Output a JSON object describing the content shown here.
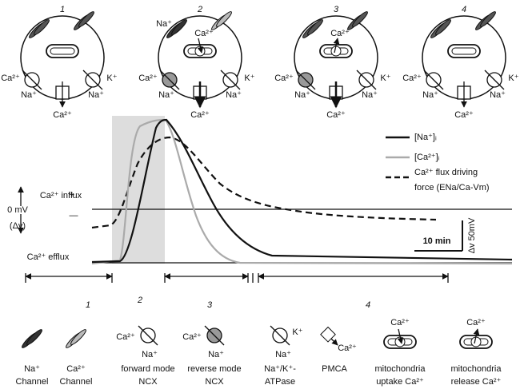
{
  "cells": [
    {
      "number": "1",
      "ncx_ca": "Ca²⁺",
      "ncx_na": "Na⁺",
      "atpase_k": "K⁺",
      "atpase_na": "Na⁺",
      "pmca": "Ca²⁺"
    },
    {
      "number": "2",
      "channel_na": "Na⁺",
      "mito": "Ca²⁺",
      "ncx_ca": "Ca²⁺",
      "ncx_na": "Na⁺",
      "atpase_k": "K⁺",
      "atpase_na": "Na⁺",
      "pmca": "Ca²⁺"
    },
    {
      "number": "3",
      "mito": "Ca²⁺",
      "ncx_ca": "Ca²⁺",
      "ncx_na": "Na⁺",
      "atpase_k": "K⁺",
      "atpase_na": "Na⁺",
      "pmca": "Ca²⁺"
    },
    {
      "number": "4",
      "ncx_ca": "Ca²⁺",
      "ncx_na": "Na⁺",
      "atpase_k": "K⁺",
      "atpase_na": "Na⁺",
      "pmca": "Ca²⁺"
    }
  ],
  "plot": {
    "legend": [
      "[Na⁺]ᵢ",
      "[Ca²⁺]ᵢ",
      "Ca²⁺ flux driving",
      "force (ENa/Ca-Vm)"
    ],
    "influx": "Ca²⁺ influx",
    "plus": "+",
    "zero": "0 mV",
    "delta": "(Δv)",
    "minus": "—",
    "efflux": "Ca²⁺ efflux",
    "time_scale": "10 min",
    "voltage_scale": "Δv 50mV",
    "phases": [
      "1",
      "2",
      "3",
      "4"
    ]
  },
  "legend_items": [
    {
      "label": [
        "Na⁺",
        "Channel"
      ]
    },
    {
      "label": [
        "Ca²⁺",
        "Channel"
      ]
    },
    {
      "label": [
        "forward mode",
        "NCX"
      ],
      "ions": [
        "Ca²⁺",
        "Na⁺"
      ]
    },
    {
      "label": [
        "reverse mode",
        "NCX"
      ],
      "ions": [
        "Ca²⁺",
        "Na⁺"
      ]
    },
    {
      "label": [
        "Na⁺/K⁺-",
        "ATPase"
      ],
      "ions": [
        "K⁺",
        "Na⁺"
      ]
    },
    {
      "label": [
        "PMCA"
      ],
      "ions": [
        "Ca²⁺"
      ]
    },
    {
      "label": [
        "mitochondria",
        "uptake Ca²⁺"
      ],
      "ions": [
        "Ca²⁺"
      ]
    },
    {
      "label": [
        "mitochondria",
        "release Ca²⁺"
      ],
      "ions": [
        "Ca²⁺"
      ]
    }
  ]
}
